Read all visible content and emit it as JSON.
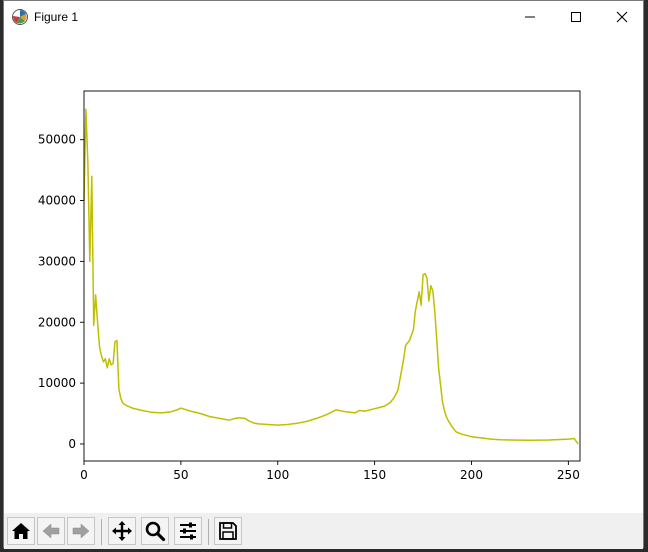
{
  "window": {
    "title": "Figure 1"
  },
  "colors": {
    "line": "#bfbf00",
    "axes": "#000000",
    "background": "#ffffff"
  },
  "toolbar": {
    "buttons": [
      {
        "name": "home-button",
        "icon": "home-icon"
      },
      {
        "name": "back-button",
        "icon": "back-arrow-icon"
      },
      {
        "name": "forward-button",
        "icon": "forward-arrow-icon"
      },
      {
        "name": "pan-button",
        "icon": "move-icon"
      },
      {
        "name": "zoom-button",
        "icon": "magnifier-icon"
      },
      {
        "name": "configure-subplots-button",
        "icon": "sliders-icon"
      },
      {
        "name": "save-button",
        "icon": "floppy-disk-icon"
      }
    ]
  },
  "chart_data": {
    "type": "line",
    "title": "",
    "xlabel": "",
    "ylabel": "",
    "xlim": [
      0,
      256
    ],
    "ylim": [
      -2800,
      58000
    ],
    "xticks": [
      0,
      50,
      100,
      150,
      200,
      250
    ],
    "yticks": [
      0,
      10000,
      20000,
      30000,
      40000,
      50000
    ],
    "grid": false,
    "series": [
      {
        "color": "#bfbf00",
        "x": [
          0,
          1,
          2,
          3,
          4,
          5,
          6,
          7,
          8,
          9,
          10,
          11,
          12,
          13,
          14,
          15,
          16,
          17,
          18,
          19,
          20,
          22,
          25,
          30,
          35,
          40,
          45,
          48,
          50,
          52,
          55,
          60,
          65,
          70,
          75,
          78,
          80,
          83,
          85,
          88,
          90,
          95,
          100,
          105,
          110,
          115,
          120,
          125,
          130,
          135,
          140,
          142,
          145,
          150,
          155,
          158,
          160,
          162,
          163,
          165,
          166,
          168,
          170,
          171,
          172,
          173,
          174,
          175,
          176,
          177,
          178,
          179,
          180,
          181,
          182,
          183,
          184,
          185,
          186,
          187,
          188,
          190,
          192,
          195,
          200,
          205,
          210,
          215,
          220,
          230,
          240,
          250,
          253,
          255
        ],
        "y": [
          40000,
          55000,
          46000,
          30000,
          44000,
          19500,
          24500,
          20000,
          16000,
          14500,
          13500,
          14000,
          12500,
          14000,
          13000,
          13200,
          16800,
          17000,
          9000,
          7500,
          6700,
          6300,
          5900,
          5500,
          5200,
          5100,
          5300,
          5600,
          5900,
          5700,
          5400,
          5000,
          4500,
          4200,
          3900,
          4200,
          4300,
          4200,
          3800,
          3400,
          3300,
          3200,
          3100,
          3200,
          3400,
          3700,
          4200,
          4800,
          5600,
          5300,
          5100,
          5500,
          5400,
          5800,
          6200,
          6800,
          7600,
          8800,
          10500,
          14000,
          16200,
          17000,
          18800,
          21800,
          23500,
          25000,
          22800,
          27800,
          28000,
          27300,
          23500,
          26000,
          25200,
          22000,
          17500,
          12500,
          9800,
          7000,
          5500,
          4500,
          3800,
          2800,
          2000,
          1600,
          1200,
          1000,
          800,
          700,
          650,
          600,
          650,
          800,
          900,
          0
        ]
      }
    ]
  }
}
